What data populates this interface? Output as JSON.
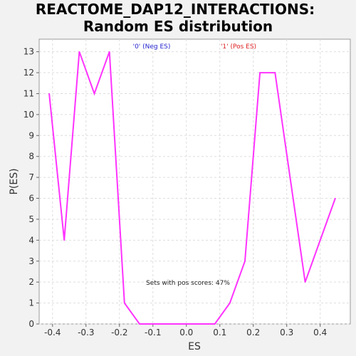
{
  "chart_data": {
    "type": "line",
    "title_line1": "REACTOME_DAP12_INTERACTIONS:",
    "title_line2": "Random ES distribution",
    "xlabel": "ES",
    "ylabel": "P(ES)",
    "xlim": [
      -0.44,
      0.49
    ],
    "ylim": [
      0,
      13.6
    ],
    "xticks": [
      -0.4,
      -0.3,
      -0.2,
      -0.1,
      0.0,
      0.1,
      0.2,
      0.3,
      0.4
    ],
    "xtick_labels": [
      "-0.4",
      "-0.3",
      "-0.2",
      "-0.1",
      "0.0",
      "0.1",
      "0.2",
      "0.3",
      "0.4"
    ],
    "yticks": [
      0,
      1,
      2,
      3,
      4,
      5,
      6,
      7,
      8,
      9,
      10,
      11,
      12,
      13
    ],
    "ytick_labels": [
      "0",
      "1",
      "2",
      "3",
      "4",
      "5",
      "6",
      "7",
      "8",
      "9",
      "10",
      "11",
      "12",
      "13"
    ],
    "grid": true,
    "legend": [
      {
        "label": "'0' (Neg ES)",
        "color": "#1f1fcc"
      },
      {
        "label": "'1' (Pos ES)",
        "color": "#dd2222"
      }
    ],
    "annotation": "Sets with pos scores: 47%",
    "series": [
      {
        "color": "#ff33ff",
        "x": [
          -0.41,
          -0.365,
          -0.32,
          -0.275,
          -0.23,
          -0.185,
          -0.14,
          -0.095,
          -0.05,
          -0.005,
          0.04,
          0.085,
          0.13,
          0.175,
          0.22,
          0.265,
          0.31,
          0.355,
          0.4,
          0.445
        ],
        "y": [
          11,
          4,
          13,
          11,
          13,
          1,
          0,
          0,
          0,
          0,
          0,
          0,
          1,
          3,
          12,
          12,
          7,
          2,
          4,
          6
        ]
      }
    ]
  }
}
